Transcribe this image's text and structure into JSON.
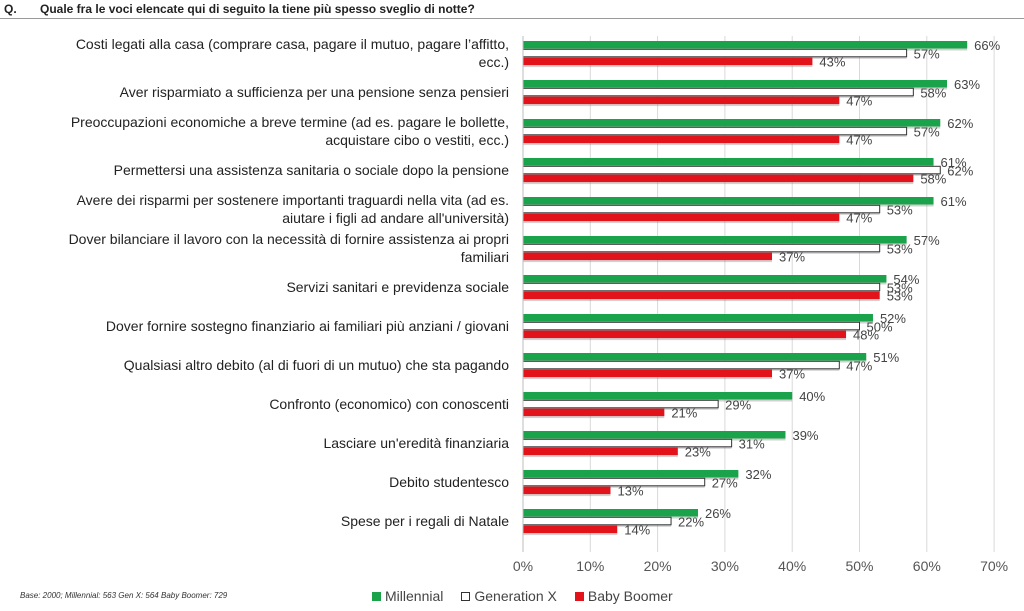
{
  "question": {
    "label": "Q.",
    "text": "Quale fra le voci elencate qui di seguito la tiene più spesso sveglio di notte?"
  },
  "footnote": "Base: 2000; Millennial: 563 Gen X: 564 Baby Boomer: 729",
  "colors": {
    "millennial": "#1aa34a",
    "genx": "#ffffff",
    "boomer": "#e2131b",
    "outline": "#333333",
    "grid": "#d9d9d9"
  },
  "chart_data": {
    "type": "bar",
    "orientation": "horizontal",
    "categories": [
      [
        "Costi legati alla casa (comprare casa, pagare il mutuo, pagare l’affitto,",
        "ecc.)"
      ],
      [
        "Aver risparmiato a sufficienza per una pensione senza pensieri"
      ],
      [
        "Preoccupazioni economiche a breve termine (ad es. pagare le bollette,",
        "acquistare cibo o vestiti, ecc.)"
      ],
      [
        "Permettersi una assistenza sanitaria o sociale dopo la pensione"
      ],
      [
        "Avere dei risparmi per sostenere importanti traguardi nella vita (ad es.",
        "aiutare i figli ad andare all'università)"
      ],
      [
        "Dover bilanciare il lavoro con la necessità di fornire assistenza ai propri",
        "familiari"
      ],
      [
        "Servizi sanitari e previdenza sociale"
      ],
      [
        "Dover fornire sostegno finanziario ai familiari più anziani / giovani"
      ],
      [
        "Qualsiasi altro debito (al di fuori di un mutuo) che sta pagando"
      ],
      [
        "Confronto (economico) con conoscenti"
      ],
      [
        "Lasciare un'eredità finanziaria"
      ],
      [
        "Debito studentesco"
      ],
      [
        "Spese per i regali di Natale"
      ]
    ],
    "series": [
      {
        "name": "Millennial",
        "color": "#1aa34a",
        "values": [
          66,
          63,
          62,
          61,
          61,
          57,
          54,
          52,
          51,
          40,
          39,
          32,
          26
        ]
      },
      {
        "name": "Generation X",
        "color": "#ffffff",
        "values": [
          57,
          58,
          57,
          62,
          53,
          53,
          53,
          50,
          47,
          29,
          31,
          27,
          22
        ]
      },
      {
        "name": "Baby Boomer",
        "color": "#e2131b",
        "values": [
          43,
          47,
          47,
          58,
          47,
          37,
          53,
          48,
          37,
          21,
          23,
          13,
          14
        ]
      }
    ],
    "xlim": [
      0,
      70
    ],
    "xticks": [
      0,
      10,
      20,
      30,
      40,
      50,
      60,
      70
    ],
    "tick_suffix": "%",
    "value_suffix": "%",
    "legend_position": "bottom",
    "grid": true
  }
}
